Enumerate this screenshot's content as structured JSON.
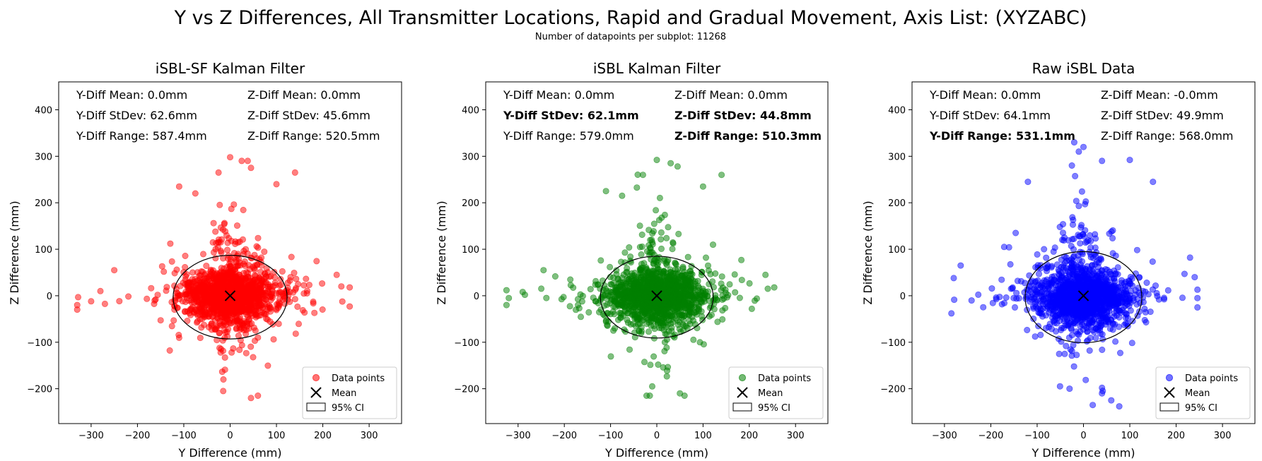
{
  "figure": {
    "title": "Y vs Z Differences, All Transmitter Locations, Rapid and Gradual Movement, Axis List: (XYZABC)",
    "subtitle": "Number of datapoints per subplot: 11268"
  },
  "chart_data": [
    {
      "type": "scatter",
      "title": "iSBL-SF Kalman Filter",
      "xlabel": "Y Difference (mm)",
      "ylabel": "Z Difference (mm)",
      "xlim": [
        -370,
        370
      ],
      "ylim": [
        -275,
        460
      ],
      "xticks": [
        -300,
        -200,
        -100,
        0,
        100,
        200,
        300
      ],
      "yticks": [
        -200,
        -100,
        0,
        100,
        200,
        300,
        400
      ],
      "color": "#ff0000",
      "legend": {
        "position": "lower right",
        "entries": [
          "Data points",
          "Mean",
          "95% CI"
        ]
      },
      "stats": [
        {
          "text": "Y-Diff Mean: 0.0mm",
          "bold": false
        },
        {
          "text": "Z-Diff Mean: 0.0mm",
          "bold": false
        },
        {
          "text": "Y-Diff StDev: 62.6mm",
          "bold": false
        },
        {
          "text": "Z-Diff StDev: 45.6mm",
          "bold": false
        },
        {
          "text": "Y-Diff Range: 587.4mm",
          "bold": false
        },
        {
          "text": "Z-Diff Range: 520.5mm",
          "bold": false
        }
      ],
      "mean": [
        0,
        0
      ],
      "ci_95": {
        "center": [
          0,
          -3
        ],
        "semi_axis_y": 123,
        "semi_axis_z": 90
      },
      "spread": {
        "y_std": 62.6,
        "z_std": 45.6,
        "y_range": [
          -330,
          258
        ],
        "z_range": [
          -220,
          300
        ]
      },
      "outliers": [
        [
          -330,
          -20
        ],
        [
          -328,
          -3
        ],
        [
          -300,
          -12
        ],
        [
          -280,
          10
        ],
        [
          0,
          298
        ],
        [
          25,
          290
        ],
        [
          38,
          290
        ],
        [
          140,
          265
        ],
        [
          -25,
          265
        ],
        [
          45,
          275
        ],
        [
          -15,
          -205
        ],
        [
          60,
          -215
        ],
        [
          45,
          -220
        ],
        [
          258,
          18
        ],
        [
          240,
          20
        ],
        [
          230,
          45
        ],
        [
          -250,
          55
        ],
        [
          -110,
          235
        ],
        [
          -75,
          220
        ],
        [
          100,
          240
        ]
      ]
    },
    {
      "type": "scatter",
      "title": "iSBL Kalman Filter",
      "xlabel": "Y Difference (mm)",
      "ylabel": "Z Difference (mm)",
      "xlim": [
        -370,
        370
      ],
      "ylim": [
        -275,
        460
      ],
      "xticks": [
        -300,
        -200,
        -100,
        0,
        100,
        200,
        300
      ],
      "yticks": [
        -200,
        -100,
        0,
        100,
        200,
        300,
        400
      ],
      "color": "#008000",
      "legend": {
        "position": "lower right",
        "entries": [
          "Data points",
          "Mean",
          "95% CI"
        ]
      },
      "stats": [
        {
          "text": "Y-Diff Mean: 0.0mm",
          "bold": false
        },
        {
          "text": "Z-Diff Mean: 0.0mm",
          "bold": false
        },
        {
          "text": "Y-Diff StDev: 62.1mm",
          "bold": true
        },
        {
          "text": "Z-Diff StDev: 44.8mm",
          "bold": true
        },
        {
          "text": "Y-Diff Range: 579.0mm",
          "bold": false
        },
        {
          "text": "Z-Diff Range: 510.3mm",
          "bold": true
        }
      ],
      "mean": [
        0,
        0
      ],
      "ci_95": {
        "center": [
          0,
          -3
        ],
        "semi_axis_y": 122,
        "semi_axis_z": 88
      },
      "spread": {
        "y_std": 62.1,
        "z_std": 44.8,
        "y_range": [
          -325,
          254
        ],
        "z_range": [
          -215,
          295
        ]
      },
      "outliers": [
        [
          -325,
          -20
        ],
        [
          -320,
          -5
        ],
        [
          -290,
          8
        ],
        [
          0,
          292
        ],
        [
          30,
          285
        ],
        [
          45,
          278
        ],
        [
          140,
          260
        ],
        [
          -30,
          260
        ],
        [
          50,
          -210
        ],
        [
          60,
          -215
        ],
        [
          -10,
          -195
        ],
        [
          254,
          18
        ],
        [
          240,
          15
        ],
        [
          235,
          45
        ],
        [
          -245,
          55
        ],
        [
          -110,
          225
        ],
        [
          -75,
          215
        ],
        [
          100,
          235
        ]
      ]
    },
    {
      "type": "scatter",
      "title": "Raw iSBL Data",
      "xlabel": "Y Difference (mm)",
      "ylabel": "Z Difference (mm)",
      "xlim": [
        -370,
        370
      ],
      "ylim": [
        -275,
        460
      ],
      "xticks": [
        -300,
        -200,
        -100,
        0,
        100,
        200,
        300
      ],
      "yticks": [
        -200,
        -100,
        0,
        100,
        200,
        300,
        400
      ],
      "color": "#0000ff",
      "legend": {
        "position": "lower right",
        "entries": [
          "Data points",
          "Mean",
          "95% CI"
        ]
      },
      "stats": [
        {
          "text": "Y-Diff Mean: 0.0mm",
          "bold": false
        },
        {
          "text": "Z-Diff Mean: -0.0mm",
          "bold": false
        },
        {
          "text": "Y-Diff StDev: 64.1mm",
          "bold": false
        },
        {
          "text": "Z-Diff StDev: 49.9mm",
          "bold": false
        },
        {
          "text": "Y-Diff Range: 531.1mm",
          "bold": true
        },
        {
          "text": "Z-Diff Range: 568.0mm",
          "bold": false
        }
      ],
      "mean": [
        0,
        0
      ],
      "ci_95": {
        "center": [
          0,
          -3
        ],
        "semi_axis_y": 126,
        "semi_axis_z": 98
      },
      "spread": {
        "y_std": 64.1,
        "z_std": 49.9,
        "y_range": [
          -285,
          246
        ],
        "z_range": [
          -238,
          330
        ]
      },
      "outliers": [
        [
          -20,
          330
        ],
        [
          0,
          320
        ],
        [
          -10,
          310
        ],
        [
          40,
          290
        ],
        [
          100,
          292
        ],
        [
          -25,
          280
        ],
        [
          -280,
          38
        ],
        [
          -285,
          -38
        ],
        [
          -265,
          65
        ],
        [
          246,
          -25
        ],
        [
          240,
          40
        ],
        [
          230,
          82
        ],
        [
          20,
          -235
        ],
        [
          60,
          -225
        ],
        [
          -30,
          -200
        ],
        [
          40,
          -210
        ],
        [
          150,
          245
        ],
        [
          -120,
          245
        ]
      ]
    }
  ]
}
